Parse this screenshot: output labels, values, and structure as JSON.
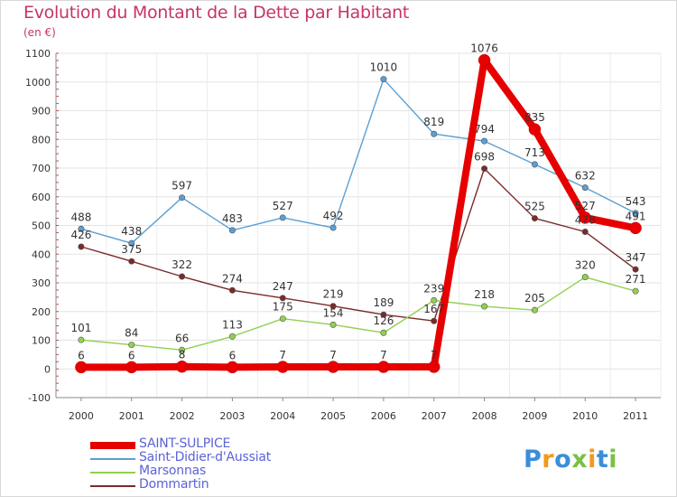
{
  "title": "Evolution du Montant de la Dette par Habitant",
  "unit_label": "(en €)",
  "logo_text": "Proxiti",
  "chart_data": {
    "type": "line",
    "title": "Evolution du Montant de la Dette par Habitant",
    "ylabel": "(en €)",
    "x": [
      "2000",
      "2001",
      "2002",
      "2003",
      "2004",
      "2005",
      "2006",
      "2007",
      "2008",
      "2009",
      "2010",
      "2011"
    ],
    "ylim": [
      -100,
      1100
    ],
    "yticks": [
      "-100",
      "0",
      "100",
      "200",
      "300",
      "400",
      "500",
      "600",
      "700",
      "800",
      "900",
      "1000",
      "1100"
    ],
    "grid": true,
    "legend_position": "bottom-left",
    "series": [
      {
        "name": "SAINT-SULPICE",
        "color": "#e60000",
        "values": [
          6,
          6,
          8,
          6,
          7,
          7,
          7,
          7,
          1076,
          835,
          527,
          491
        ],
        "labels": [
          "6",
          "6",
          "8",
          "6",
          "7",
          "7",
          "7",
          "7",
          "1076",
          "835",
          "527",
          "491"
        ]
      },
      {
        "name": "Saint-Didier-d'Aussiat",
        "color": "#5a9fd4",
        "values": [
          488,
          438,
          597,
          483,
          527,
          492,
          1010,
          819,
          794,
          713,
          632,
          543
        ],
        "labels": [
          "488",
          "438",
          "597",
          "483",
          "527",
          "492",
          "1010",
          "819",
          "794",
          "713",
          "632",
          "543"
        ]
      },
      {
        "name": "Marsonnas",
        "color": "#92d050",
        "values": [
          101,
          84,
          66,
          113,
          175,
          154,
          126,
          239,
          218,
          205,
          320,
          271
        ],
        "labels": [
          "101",
          "84",
          "66",
          "113",
          "175",
          "154",
          "126",
          "239",
          "218",
          "205",
          "320",
          "271"
        ]
      },
      {
        "name": "Dommartin",
        "color": "#7b2a2a",
        "values": [
          426,
          375,
          322,
          274,
          247,
          219,
          189,
          167,
          698,
          525,
          478,
          347
        ],
        "labels": [
          "426",
          "375",
          "322",
          "274",
          "247",
          "219",
          "189",
          "167",
          "698",
          "525",
          "478",
          "347"
        ]
      }
    ]
  }
}
